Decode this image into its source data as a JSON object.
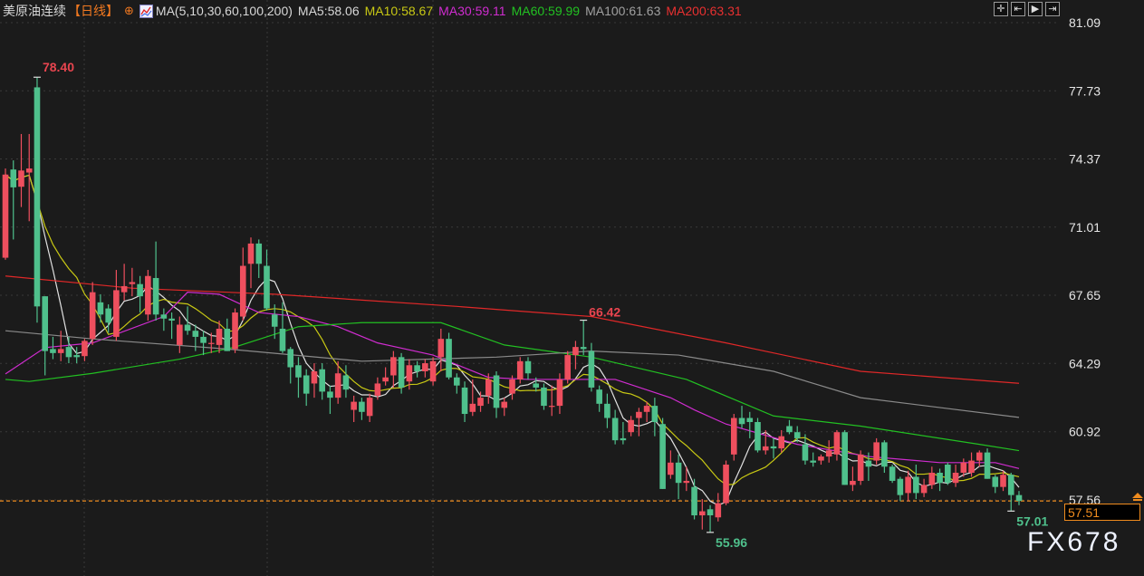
{
  "header": {
    "title": "美原油连续",
    "period": "【日线】",
    "add_icon": "circle-plus-icon",
    "ma_icon": "ma-chart-icon",
    "ma_params": "MA(5,10,30,60,100,200)",
    "ma_values": [
      {
        "label": "MA5:58.06",
        "color": "#d8d8d8"
      },
      {
        "label": "MA10:58.67",
        "color": "#c8c814"
      },
      {
        "label": "MA30:59.11",
        "color": "#d02cd0"
      },
      {
        "label": "MA60:59.99",
        "color": "#22c022"
      },
      {
        "label": "MA100:61.63",
        "color": "#a0a0a0"
      },
      {
        "label": "MA200:63.31",
        "color": "#e83030"
      }
    ]
  },
  "toolbar": [
    "crosshair-icon",
    "step-back-icon",
    "play-icon",
    "exit-icon"
  ],
  "current_price": "57.51",
  "watermark": "FX678",
  "chart_data": {
    "type": "candlestick",
    "title": "",
    "xlabel": "",
    "ylabel": "",
    "ylim": [
      57.56,
      81.09
    ],
    "yticks": [
      "81.09",
      "77.73",
      "74.37",
      "71.01",
      "67.65",
      "64.29",
      "60.92",
      "57.56"
    ],
    "colors": {
      "up": "#ee4f5e",
      "down": "#4fc08c",
      "current_line": "#f08c1e"
    },
    "ohlc_fields": [
      "open",
      "high",
      "low",
      "close"
    ],
    "candles": [
      [
        69.5,
        73.9,
        69.4,
        73.6
      ],
      [
        73.85,
        74.3,
        70.4,
        72.97
      ],
      [
        73.0,
        75.6,
        72.0,
        73.8
      ],
      [
        73.7,
        75.6,
        71.3,
        73.9
      ],
      [
        77.9,
        78.4,
        66.3,
        67.1
      ],
      [
        67.6,
        67.6,
        63.7,
        64.9
      ],
      [
        65.0,
        65.6,
        64.5,
        64.8
      ],
      [
        64.8,
        65.9,
        64.4,
        65.0
      ],
      [
        65.1,
        65.6,
        64.3,
        64.6
      ],
      [
        64.7,
        65.1,
        64.3,
        64.6
      ],
      [
        64.65,
        65.5,
        64.4,
        65.4
      ],
      [
        65.5,
        68.3,
        65.2,
        67.8
      ],
      [
        67.3,
        67.7,
        66.3,
        66.7
      ],
      [
        67.0,
        67.2,
        65.8,
        66.3
      ],
      [
        65.6,
        68.9,
        65.4,
        67.9
      ],
      [
        67.8,
        69.2,
        67.4,
        68.1
      ],
      [
        68.2,
        69.0,
        67.6,
        68.3
      ],
      [
        68.2,
        68.6,
        66.8,
        67.6
      ],
      [
        66.7,
        68.9,
        66.4,
        68.6
      ],
      [
        68.5,
        70.3,
        66.4,
        66.7
      ],
      [
        66.7,
        67.0,
        65.9,
        66.5
      ],
      [
        66.5,
        66.8,
        65.5,
        66.4
      ],
      [
        65.2,
        66.6,
        64.8,
        66.2
      ],
      [
        66.2,
        67.1,
        65.7,
        65.9
      ],
      [
        65.9,
        66.2,
        64.9,
        65.6
      ],
      [
        65.6,
        65.9,
        64.7,
        65.3
      ],
      [
        65.3,
        65.8,
        64.8,
        65.3
      ],
      [
        65.2,
        66.4,
        64.8,
        66.0
      ],
      [
        66.0,
        66.5,
        64.9,
        64.9
      ],
      [
        65.0,
        67.0,
        64.8,
        66.8
      ],
      [
        66.6,
        70.0,
        66.4,
        69.1
      ],
      [
        69.2,
        70.5,
        68.0,
        70.2
      ],
      [
        70.2,
        70.4,
        68.5,
        69.2
      ],
      [
        69.1,
        69.9,
        66.9,
        67.0
      ],
      [
        66.7,
        67.2,
        65.5,
        66.1
      ],
      [
        66.0,
        67.3,
        64.8,
        64.9
      ],
      [
        65.0,
        65.1,
        63.3,
        64.1
      ],
      [
        64.2,
        64.6,
        62.6,
        63.6
      ],
      [
        63.7,
        64.0,
        62.2,
        62.8
      ],
      [
        63.3,
        64.3,
        62.6,
        63.9
      ],
      [
        64.0,
        64.3,
        62.5,
        62.9
      ],
      [
        62.9,
        63.2,
        61.8,
        62.6
      ],
      [
        62.6,
        64.4,
        62.3,
        63.8
      ],
      [
        63.7,
        64.2,
        62.6,
        63.0
      ],
      [
        62.0,
        62.7,
        61.4,
        62.4
      ],
      [
        62.4,
        62.6,
        61.5,
        61.9
      ],
      [
        61.7,
        62.8,
        61.4,
        62.6
      ],
      [
        62.7,
        63.6,
        62.5,
        63.3
      ],
      [
        63.4,
        64.1,
        63.2,
        63.6
      ],
      [
        63.7,
        64.9,
        63.1,
        64.6
      ],
      [
        64.6,
        64.8,
        62.8,
        63.1
      ],
      [
        63.4,
        64.5,
        63.0,
        64.2
      ],
      [
        64.2,
        64.4,
        63.6,
        63.9
      ],
      [
        63.9,
        64.5,
        63.6,
        64.3
      ],
      [
        63.4,
        64.6,
        63.2,
        64.4
      ],
      [
        64.6,
        66.0,
        63.9,
        65.5
      ],
      [
        65.5,
        65.8,
        63.5,
        63.6
      ],
      [
        63.6,
        63.8,
        62.8,
        63.2
      ],
      [
        63.1,
        63.4,
        61.4,
        61.8
      ],
      [
        61.9,
        63.5,
        61.7,
        62.3
      ],
      [
        62.2,
        62.9,
        61.9,
        62.6
      ],
      [
        62.7,
        63.8,
        62.3,
        63.5
      ],
      [
        63.7,
        63.9,
        61.6,
        62.1
      ],
      [
        62.1,
        62.6,
        61.7,
        62.4
      ],
      [
        62.8,
        63.7,
        62.5,
        63.5
      ],
      [
        63.5,
        64.6,
        63.3,
        64.4
      ],
      [
        64.4,
        64.6,
        63.5,
        63.8
      ],
      [
        63.3,
        63.6,
        62.9,
        63.1
      ],
      [
        63.1,
        63.3,
        62.0,
        62.2
      ],
      [
        62.2,
        63.2,
        61.7,
        62.2
      ],
      [
        62.2,
        63.8,
        61.8,
        63.5
      ],
      [
        63.5,
        64.9,
        63.3,
        64.7
      ],
      [
        64.7,
        65.4,
        64.0,
        65.1
      ],
      [
        65.1,
        66.42,
        64.7,
        65.0
      ],
      [
        64.9,
        65.3,
        62.9,
        63.1
      ],
      [
        63.0,
        63.2,
        61.9,
        62.3
      ],
      [
        62.3,
        62.8,
        61.1,
        61.6
      ],
      [
        61.6,
        62.0,
        60.3,
        60.5
      ],
      [
        60.6,
        61.4,
        60.3,
        60.5
      ],
      [
        60.9,
        61.7,
        60.7,
        61.5
      ],
      [
        61.6,
        62.1,
        60.7,
        61.9
      ],
      [
        61.9,
        62.4,
        61.4,
        62.2
      ],
      [
        62.2,
        62.6,
        60.7,
        61.4
      ],
      [
        61.3,
        61.6,
        58.1,
        58.1
      ],
      [
        58.8,
        60.0,
        58.6,
        59.4
      ],
      [
        59.4,
        59.8,
        57.6,
        58.4
      ],
      [
        58.4,
        59.2,
        58.0,
        58.5
      ],
      [
        58.2,
        58.6,
        56.6,
        56.8
      ],
      [
        56.8,
        57.6,
        56.1,
        57.0
      ],
      [
        57.1,
        57.3,
        55.96,
        56.8
      ],
      [
        56.7,
        57.9,
        56.5,
        57.4
      ],
      [
        57.4,
        59.5,
        57.3,
        59.3
      ],
      [
        59.8,
        61.8,
        59.5,
        61.6
      ],
      [
        61.6,
        62.2,
        61.1,
        61.3
      ],
      [
        61.6,
        61.9,
        60.6,
        61.4
      ],
      [
        61.4,
        61.6,
        59.9,
        60.0
      ],
      [
        60.0,
        61.0,
        59.8,
        60.2
      ],
      [
        60.2,
        60.6,
        59.6,
        60.1
      ],
      [
        60.1,
        61.0,
        59.9,
        60.7
      ],
      [
        61.2,
        61.5,
        60.8,
        60.9
      ],
      [
        60.9,
        61.2,
        60.4,
        60.6
      ],
      [
        60.3,
        60.8,
        59.3,
        59.5
      ],
      [
        59.5,
        59.9,
        59.2,
        59.4
      ],
      [
        59.5,
        59.8,
        59.3,
        59.7
      ],
      [
        59.7,
        60.5,
        59.4,
        60.0
      ],
      [
        59.8,
        61.0,
        59.5,
        60.9
      ],
      [
        60.9,
        61.0,
        58.3,
        58.3
      ],
      [
        58.3,
        59.2,
        58.0,
        58.5
      ],
      [
        58.5,
        60.0,
        58.3,
        59.8
      ],
      [
        59.5,
        59.9,
        58.5,
        59.2
      ],
      [
        59.5,
        60.6,
        59.3,
        60.4
      ],
      [
        60.4,
        60.5,
        58.9,
        59.2
      ],
      [
        59.2,
        59.3,
        58.4,
        58.5
      ],
      [
        58.6,
        58.7,
        57.5,
        57.8
      ],
      [
        57.9,
        59.0,
        57.5,
        58.7
      ],
      [
        58.7,
        59.3,
        57.6,
        57.9
      ],
      [
        57.9,
        58.6,
        57.7,
        58.3
      ],
      [
        58.3,
        59.2,
        58.1,
        58.9
      ],
      [
        58.9,
        59.1,
        58.0,
        58.4
      ],
      [
        59.3,
        59.4,
        58.3,
        58.4
      ],
      [
        58.4,
        59.3,
        58.2,
        58.9
      ],
      [
        58.9,
        59.6,
        58.7,
        59.4
      ],
      [
        58.9,
        59.9,
        58.7,
        59.5
      ],
      [
        59.5,
        60.0,
        59.2,
        59.9
      ],
      [
        59.9,
        60.1,
        58.6,
        58.6
      ],
      [
        58.7,
        58.8,
        57.9,
        58.2
      ],
      [
        58.2,
        59.0,
        58.0,
        58.8
      ],
      [
        58.8,
        58.9,
        57.01,
        57.8
      ],
      [
        57.8,
        58.0,
        57.3,
        57.51
      ]
    ],
    "moving_averages": [
      {
        "name": "MA5",
        "period": 5,
        "color": "#e0e0e0"
      },
      {
        "name": "MA10",
        "period": 10,
        "color": "#c8c814"
      },
      {
        "name": "MA30",
        "color": "#d02cd0",
        "points": [
          [
            0,
            63.77
          ],
          [
            5,
            65.07
          ],
          [
            11,
            65.3
          ],
          [
            20,
            66.6
          ],
          [
            23,
            67.8
          ],
          [
            27,
            67.7
          ],
          [
            32,
            66.8
          ],
          [
            37,
            66.6
          ],
          [
            42,
            66.1
          ],
          [
            47,
            65.3
          ],
          [
            54,
            64.7
          ],
          [
            61,
            63.6
          ],
          [
            66,
            63.5
          ],
          [
            77,
            63.5
          ],
          [
            84,
            62.6
          ],
          [
            87,
            62.0
          ],
          [
            91,
            61.3
          ],
          [
            100,
            60.3
          ],
          [
            109,
            59.7
          ],
          [
            118,
            59.4
          ],
          [
            125,
            59.4
          ],
          [
            128,
            59.11
          ]
        ]
      },
      {
        "name": "MA60",
        "color": "#22c022",
        "points": [
          [
            0,
            63.5
          ],
          [
            3,
            63.4
          ],
          [
            11,
            63.8
          ],
          [
            22,
            64.5
          ],
          [
            29,
            65.1
          ],
          [
            37,
            66.1
          ],
          [
            45,
            66.3
          ],
          [
            55,
            66.3
          ],
          [
            63,
            65.2
          ],
          [
            74,
            64.6
          ],
          [
            86,
            63.5
          ],
          [
            97,
            61.7
          ],
          [
            108,
            61.2
          ],
          [
            123,
            60.3
          ],
          [
            128,
            59.99
          ]
        ]
      },
      {
        "name": "MA100",
        "color": "#8a8a8a",
        "points": [
          [
            0,
            65.9
          ],
          [
            11,
            65.5
          ],
          [
            28,
            65.0
          ],
          [
            45,
            64.4
          ],
          [
            62,
            64.6
          ],
          [
            74,
            64.9
          ],
          [
            85,
            64.7
          ],
          [
            97,
            63.9
          ],
          [
            108,
            62.6
          ],
          [
            128,
            61.63
          ]
        ]
      },
      {
        "name": "MA200",
        "color": "#e02828",
        "points": [
          [
            0,
            68.6
          ],
          [
            16,
            68.0
          ],
          [
            34,
            67.7
          ],
          [
            57,
            67.1
          ],
          [
            74,
            66.6
          ],
          [
            91,
            65.3
          ],
          [
            108,
            63.9
          ],
          [
            128,
            63.31
          ]
        ]
      }
    ],
    "annotations": [
      {
        "text": "78.40",
        "candle": 4,
        "price": 78.4,
        "color": "#e8454f",
        "position": "above-right"
      },
      {
        "text": "66.42",
        "candle": 73,
        "price": 66.42,
        "color": "#e8454f",
        "position": "right"
      },
      {
        "text": "55.96",
        "candle": 89,
        "price": 55.96,
        "color": "#4fc08c",
        "position": "below-right"
      },
      {
        "text": "57.01",
        "candle": 127,
        "price": 57.01,
        "color": "#4fc08c",
        "position": "below-right"
      }
    ],
    "current_price": 57.51
  }
}
